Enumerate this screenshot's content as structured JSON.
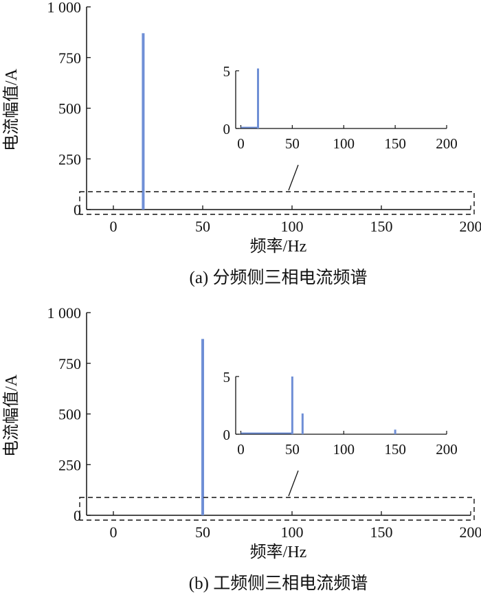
{
  "chart_data": [
    {
      "type": "bar",
      "panel": "a",
      "caption": "(a) 分频侧三相电流频谱",
      "xlabel": "频率/Hz",
      "ylabel": "电流幅值/A",
      "xlim": [
        -15,
        200
      ],
      "ylim": [
        0,
        1000
      ],
      "xticks": [
        "0",
        "50",
        "100",
        "150",
        "200"
      ],
      "yticks": [
        "0",
        "250",
        "500",
        "750",
        "1 000"
      ],
      "color": "#6f8fd6",
      "grid": false,
      "x": [
        16.7
      ],
      "values": [
        870
      ],
      "inset": {
        "xlim": [
          -5,
          200
        ],
        "ylim": [
          0,
          5
        ],
        "xticks": [
          "0",
          "50",
          "100",
          "150",
          "200"
        ],
        "yticks": [
          "0",
          "5"
        ],
        "x": [
          16.7
        ],
        "values": [
          5.2
        ],
        "baseline_to": 16.7
      }
    },
    {
      "type": "bar",
      "panel": "b",
      "caption": "(b) 工频侧三相电流频谱",
      "xlabel": "频率/Hz",
      "ylabel": "电流幅值/A",
      "xlim": [
        -15,
        200
      ],
      "ylim": [
        0,
        1000
      ],
      "xticks": [
        "0",
        "50",
        "100",
        "150",
        "200"
      ],
      "yticks": [
        "0",
        "250",
        "500",
        "750",
        "1 000"
      ],
      "color": "#6f8fd6",
      "grid": false,
      "x": [
        50
      ],
      "values": [
        870
      ],
      "inset": {
        "xlim": [
          -5,
          200
        ],
        "ylim": [
          0,
          5
        ],
        "xticks": [
          "0",
          "50",
          "100",
          "150",
          "200"
        ],
        "yticks": [
          "0",
          "5"
        ],
        "x": [
          50,
          60,
          150
        ],
        "values": [
          5.0,
          1.8,
          0.4
        ],
        "baseline_to": 50
      }
    }
  ]
}
